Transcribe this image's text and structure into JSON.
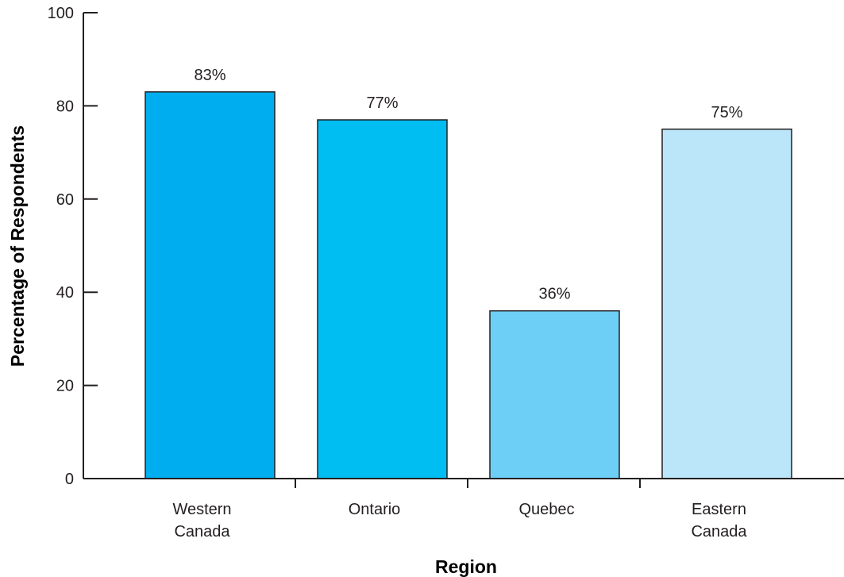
{
  "chart_data": {
    "type": "bar",
    "categories": [
      [
        "Western",
        "Canada"
      ],
      [
        "Ontario"
      ],
      [
        "Quebec"
      ],
      [
        "Eastern",
        "Canada"
      ]
    ],
    "values": [
      83,
      77,
      36,
      75
    ],
    "data_labels": [
      "83%",
      "77%",
      "36%",
      "75%"
    ],
    "bar_colors": [
      "#00aeef",
      "#00bdf2",
      "#6dcff6",
      "#bbe5f8"
    ],
    "ylabel": "Percentage of Respondents",
    "xlabel": "Region",
    "ylim": [
      0,
      100
    ],
    "yticks": [
      0,
      20,
      40,
      60,
      80,
      100
    ],
    "grid": false,
    "legend": "none"
  }
}
